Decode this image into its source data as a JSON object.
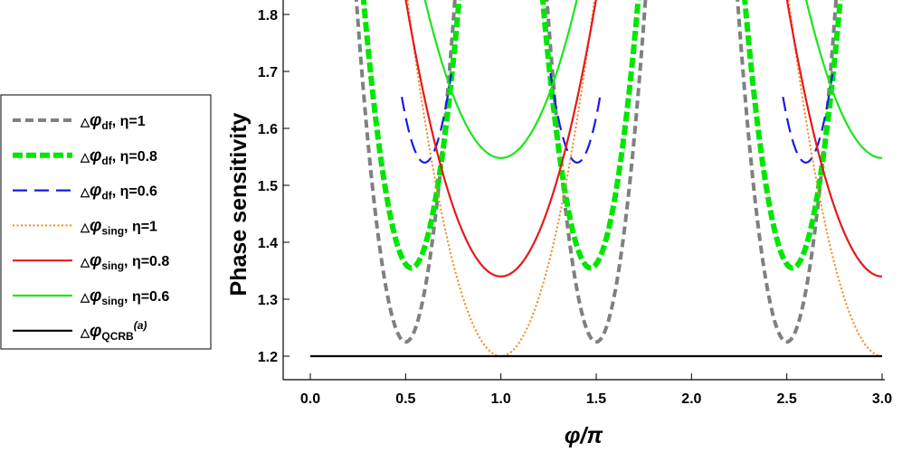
{
  "chart_data": {
    "type": "line",
    "xlabel": "φ/π",
    "ylabel": "Phase sensitivity",
    "xlim": [
      0,
      3
    ],
    "ylim": [
      1.2,
      1.8
    ],
    "xticks": [
      "0.0",
      "0.5",
      "1.0",
      "1.5",
      "2.0",
      "2.5",
      "3.0"
    ],
    "yticks": [
      "1.2",
      "1.3",
      "1.4",
      "1.5",
      "1.6",
      "1.7",
      "1.8"
    ],
    "grid": false,
    "legend_position": "left",
    "series": [
      {
        "name": "△φdf, η=1",
        "label_main": "△φ",
        "label_sub": "df",
        "label_tail": ", η=1",
        "color": "#808080",
        "style": "dashed",
        "minima": [
          {
            "x": 0.5,
            "y": 1.225,
            "k": 9.0
          },
          {
            "x": 1.5,
            "y": 1.225,
            "k": 9.0
          },
          {
            "x": 2.5,
            "y": 1.225,
            "k": 9.0
          }
        ]
      },
      {
        "name": "△φdf, η=0.8",
        "label_main": "△φ",
        "label_sub": "df",
        "label_tail": ", η=0.8",
        "color": "#00e600",
        "style": "thick-dashed",
        "minima": [
          {
            "x": 0.53,
            "y": 1.355,
            "k": 7.5
          },
          {
            "x": 1.47,
            "y": 1.355,
            "k": 7.5
          },
          {
            "x": 2.53,
            "y": 1.355,
            "k": 7.5
          }
        ]
      },
      {
        "name": "△φdf, η=0.6",
        "label_main": "△φ",
        "label_sub": "df",
        "label_tail": ", η=0.6",
        "color": "#1a1ae6",
        "style": "long-dashed",
        "minima": [
          {
            "x": 0.6,
            "y": 1.54,
            "k": 8.0
          },
          {
            "x": 1.4,
            "y": 1.54,
            "k": 8.0
          },
          {
            "x": 2.6,
            "y": 1.54,
            "k": 8.0
          }
        ],
        "x_ranges": [
          [
            0.48,
            0.74
          ],
          [
            1.26,
            1.52
          ],
          [
            2.48,
            2.74
          ]
        ]
      },
      {
        "name": "△φsing, η=1",
        "label_main": "△φ",
        "label_sub": "sing",
        "label_tail": ", η=1",
        "color": "#f08a19",
        "style": "dotted",
        "minima": [
          {
            "x": 1.0,
            "y": 1.2,
            "k": 2.6
          },
          {
            "x": 3.0,
            "y": 1.2,
            "k": 2.6
          }
        ]
      },
      {
        "name": "△φsing, η=0.8",
        "label_main": "△φ",
        "label_sub": "sing",
        "label_tail": ", η=0.8",
        "color": "#e61919",
        "style": "solid",
        "minima": [
          {
            "x": 1.0,
            "y": 1.34,
            "k": 1.95
          },
          {
            "x": 3.0,
            "y": 1.34,
            "k": 1.95
          }
        ]
      },
      {
        "name": "△φsing, η=0.6",
        "label_main": "△φ",
        "label_sub": "sing",
        "label_tail": ", η=0.6",
        "color": "#1ae61a",
        "style": "solid",
        "minima": [
          {
            "x": 1.0,
            "y": 1.548,
            "k": 1.75
          },
          {
            "x": 3.0,
            "y": 1.548,
            "k": 1.75
          }
        ]
      },
      {
        "name": "△φQCRB(a)",
        "label_main": "△φ",
        "label_sub": "QCRB",
        "label_sup": "(a)",
        "label_tail": "",
        "color": "#000000",
        "style": "solid",
        "x": [
          0,
          3
        ],
        "y": [
          1.2,
          1.2
        ]
      }
    ]
  }
}
